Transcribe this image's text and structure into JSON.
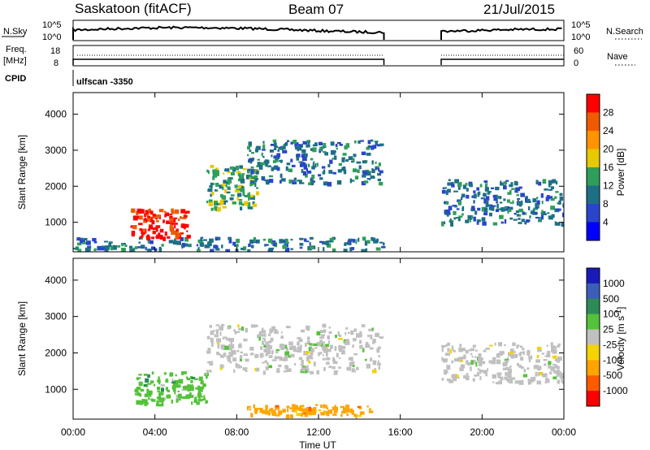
{
  "header": {
    "station_title": "Saskatoon (fitACF)",
    "beam": "Beam 07",
    "date": "21/Jul/2015",
    "scan_mode": "ulfscan -3350"
  },
  "strip_labels": {
    "nsky": "N.Sky",
    "nsearch": "N.Search",
    "freq_line1": "Freq.",
    "freq_line2": "[MHz]",
    "nave": "Nave",
    "cpid": "CPID",
    "nsky_ticks": [
      "10^5",
      "10^0"
    ],
    "nsearch_ticks": [
      "10^5",
      "10^0"
    ],
    "freq_ticks": [
      "18",
      "8"
    ],
    "nave_ticks": [
      "60",
      "0"
    ]
  },
  "chart_data": [
    {
      "type": "heatmap",
      "title": "",
      "quantity": "Power [dB]",
      "ylabel": "Slant Range [km]",
      "xlabel": "",
      "x_range_hours": [
        0,
        24
      ],
      "ylim": [
        180,
        4600
      ],
      "yticks": [
        "1000",
        "2000",
        "3000",
        "4000"
      ],
      "data_gap_hours": [
        15.2,
        18.0
      ],
      "colorbar": {
        "label": "Power [dB]",
        "ticks": [
          "28",
          "24",
          "20",
          "16",
          "12",
          "8",
          "4"
        ],
        "colors": [
          "#ff0000",
          "#f05a00",
          "#ff9400",
          "#e8c800",
          "#2f9e5a",
          "#1e6f86",
          "#2a45cc",
          "#0000ff"
        ]
      },
      "features": [
        {
          "name": "near-range echo band",
          "t": [
            0,
            15.2
          ],
          "range_km": [
            250,
            600
          ],
          "power_db": 8
        },
        {
          "name": "strong red echo patch",
          "t": [
            2.8,
            5.6
          ],
          "range_km": [
            600,
            1400
          ],
          "power_db": 28
        },
        {
          "name": "rising echo band",
          "t": [
            6.5,
            9.0
          ],
          "range_km": [
            1400,
            2600
          ],
          "power_db": 14
        },
        {
          "name": "far-range ridge",
          "t": [
            8.5,
            15.0
          ],
          "range_km": [
            2100,
            3300
          ],
          "power_db": 8
        },
        {
          "name": "evening bands",
          "t": [
            18.0,
            24.0
          ],
          "range_km": [
            1000,
            2200
          ],
          "power_db": 10
        }
      ]
    },
    {
      "type": "heatmap",
      "title": "",
      "quantity": "Velocity [m s-1]",
      "ylabel": "Slant Range [km]",
      "xlabel": "Time UT",
      "x_range_hours": [
        0,
        24
      ],
      "ylim": [
        180,
        4600
      ],
      "yticks": [
        "1000",
        "2000",
        "3000",
        "4000"
      ],
      "xticks": [
        "00:00",
        "04:00",
        "08:00",
        "12:00",
        "16:00",
        "20:00",
        "00:00"
      ],
      "data_gap_hours": [
        15.2,
        18.0
      ],
      "colorbar": {
        "label": "Velocity [m s",
        "label_sup": "-1",
        "label_end": "]",
        "ticks": [
          "1000",
          "500",
          "100",
          "25",
          "-25",
          "-100",
          "-500",
          "-1000"
        ],
        "colors": [
          "#1a1ab8",
          "#3b5fb8",
          "#2e8b57",
          "#54c23a",
          "#c0c0c0",
          "#f5d300",
          "#ffa500",
          "#ff5a00",
          "#ff0000"
        ]
      },
      "features": [
        {
          "name": "ground scatter band",
          "t": [
            6.5,
            15.0
          ],
          "range_km": [
            1500,
            2800
          ],
          "velocity": 0
        },
        {
          "name": "green flow region",
          "t": [
            3.0,
            6.5
          ],
          "range_km": [
            600,
            1500
          ],
          "velocity": 100
        },
        {
          "name": "orange flow band",
          "t": [
            8.5,
            14.5
          ],
          "range_km": [
            300,
            600
          ],
          "velocity": -100
        },
        {
          "name": "evening grey bands",
          "t": [
            18.0,
            24.0
          ],
          "range_km": [
            1200,
            2300
          ],
          "velocity": 0
        }
      ]
    }
  ]
}
